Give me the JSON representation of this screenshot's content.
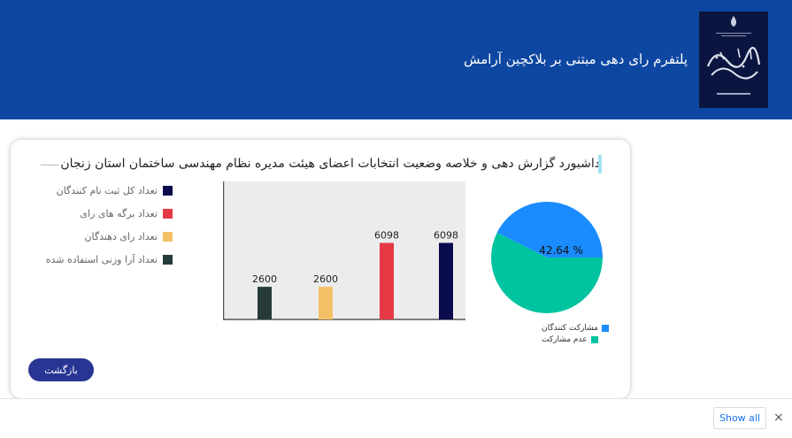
{
  "header": {
    "title": "پلتفرم رای دهی مبتنی بر بلاکچین آرامش",
    "logo_name": "elections-logo"
  },
  "card": {
    "title": "داشبورد گزارش دهی و خلاصه وضعیت انتخابات اعضای هیئت مدیره نظام مهندسی ساختمان استان زنجان",
    "back_label": "بازگشت"
  },
  "chart_data": [
    {
      "type": "bar",
      "series": [
        {
          "name": "تعداد کل ثبت نام کنندگان",
          "value": 6098,
          "color": "#0a0a4e"
        },
        {
          "name": "تعداد برگه های رای",
          "value": 6098,
          "color": "#e53946"
        },
        {
          "name": "تعداد رای دهندگان",
          "value": 2600,
          "color": "#f4c066"
        },
        {
          "name": "تعداد آرا وزنی استفاده شده",
          "value": 2600,
          "color": "#263a3a"
        }
      ],
      "xlabel": "",
      "ylabel": "",
      "grid": false,
      "legend_position": "left"
    },
    {
      "type": "pie",
      "slices": [
        {
          "label": "مشارکت کنندگان",
          "value": 42.64,
          "color": "#1a8cff"
        },
        {
          "label": "عدم مشارکت",
          "value": 57.36,
          "color": "#00c4a0"
        }
      ],
      "center_label": "42.64 %",
      "legend_position": "bottom-left"
    }
  ],
  "download_bar": {
    "show_all_label": "Show all",
    "close_icon": "×"
  }
}
